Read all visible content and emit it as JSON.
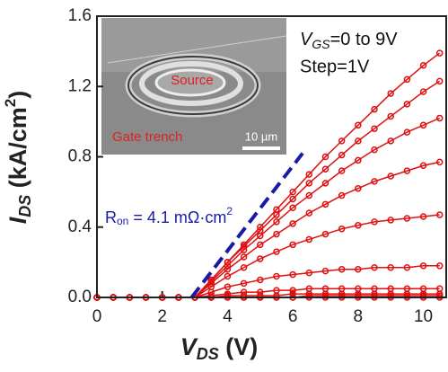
{
  "chart_data": {
    "type": "line",
    "x": [
      0,
      0.5,
      1,
      1.5,
      2,
      2.5,
      3,
      3.5,
      4,
      4.5,
      5,
      5.5,
      6,
      6.5,
      7,
      7.5,
      8,
      8.5,
      9,
      9.5,
      10,
      10.5
    ],
    "xlim": [
      0,
      10.7
    ],
    "xticks": [
      0,
      2,
      4,
      6,
      8,
      10
    ],
    "ylim": [
      0,
      1.6
    ],
    "yticks": [
      {
        "value": 0,
        "label": "0.0"
      },
      0.4,
      0.8,
      1.2,
      1.6
    ],
    "xlabel": [
      "V",
      "DS",
      " (V)"
    ],
    "ylabel": [
      "I",
      "DS",
      " (kA/cm",
      "2",
      ")"
    ],
    "series": [
      {
        "color": "#e01010",
        "values": [
          0,
          0,
          0,
          0,
          0,
          0,
          0,
          0,
          0,
          0,
          0,
          0,
          0,
          0,
          0,
          0,
          0,
          0,
          0,
          0,
          0,
          0
        ]
      },
      {
        "color": "#e01010",
        "values": [
          0,
          0,
          0,
          0,
          0,
          0,
          0,
          0,
          0,
          0,
          0,
          0,
          0,
          0.01,
          0.01,
          0.01,
          0.01,
          0.01,
          0.01,
          0.01,
          0.01,
          0.01
        ]
      },
      {
        "color": "#e01010",
        "values": [
          0,
          0,
          0,
          0,
          0,
          0,
          0,
          0,
          0.01,
          0.01,
          0.01,
          0.01,
          0.02,
          0.02,
          0.02,
          0.02,
          0.02,
          0.02,
          0.02,
          0.02,
          0.02,
          0.02
        ]
      },
      {
        "color": "#e01010",
        "values": [
          0,
          0,
          0,
          0,
          0,
          0,
          0,
          0.01,
          0.02,
          0.03,
          0.03,
          0.04,
          0.04,
          0.05,
          0.05,
          0.05,
          0.05,
          0.05,
          0.05,
          0.05,
          0.05,
          0.05
        ]
      },
      {
        "color": "#e01010",
        "values": [
          0,
          0,
          0,
          0,
          0,
          0,
          0,
          0.03,
          0.06,
          0.08,
          0.1,
          0.12,
          0.13,
          0.14,
          0.15,
          0.16,
          0.16,
          0.17,
          0.17,
          0.17,
          0.18,
          0.18
        ]
      },
      {
        "color": "#e01010",
        "values": [
          0,
          0,
          0,
          0,
          0,
          0,
          0,
          0.06,
          0.12,
          0.17,
          0.22,
          0.26,
          0.3,
          0.33,
          0.36,
          0.39,
          0.41,
          0.43,
          0.44,
          0.45,
          0.46,
          0.47
        ]
      },
      {
        "color": "#e01010",
        "values": [
          0,
          0,
          0,
          0,
          0,
          0,
          0,
          0.08,
          0.16,
          0.23,
          0.3,
          0.36,
          0.42,
          0.48,
          0.53,
          0.58,
          0.62,
          0.66,
          0.69,
          0.72,
          0.75,
          0.77
        ]
      },
      {
        "color": "#e01010",
        "values": [
          0,
          0,
          0,
          0,
          0,
          0,
          0,
          0.09,
          0.18,
          0.27,
          0.35,
          0.43,
          0.51,
          0.58,
          0.65,
          0.72,
          0.78,
          0.84,
          0.89,
          0.94,
          0.98,
          1.02
        ]
      },
      {
        "color": "#e01010",
        "values": [
          0,
          0,
          0,
          0,
          0,
          0,
          0,
          0.1,
          0.2,
          0.29,
          0.38,
          0.47,
          0.56,
          0.65,
          0.73,
          0.81,
          0.89,
          0.96,
          1.03,
          1.1,
          1.17,
          1.23
        ]
      },
      {
        "color": "#e01010",
        "values": [
          0,
          0,
          0,
          0,
          0,
          0,
          0,
          0.1,
          0.2,
          0.3,
          0.4,
          0.5,
          0.6,
          0.7,
          0.8,
          0.89,
          0.98,
          1.07,
          1.16,
          1.24,
          1.32,
          1.39
        ]
      }
    ],
    "ron_line": {
      "x": [
        2.9,
        6.3
      ],
      "y": [
        0,
        0.82
      ],
      "color": "#1a1aa8",
      "label": [
        "R",
        "on",
        " = 4.1 mΩ·cm",
        "2"
      ]
    },
    "annotations": {
      "vgs": [
        "V",
        "GS",
        "=0 to 9V"
      ],
      "step": "Step=1V"
    },
    "inset": {
      "source": "Source",
      "gate": "Gate trench",
      "scale": "10 µm"
    }
  }
}
